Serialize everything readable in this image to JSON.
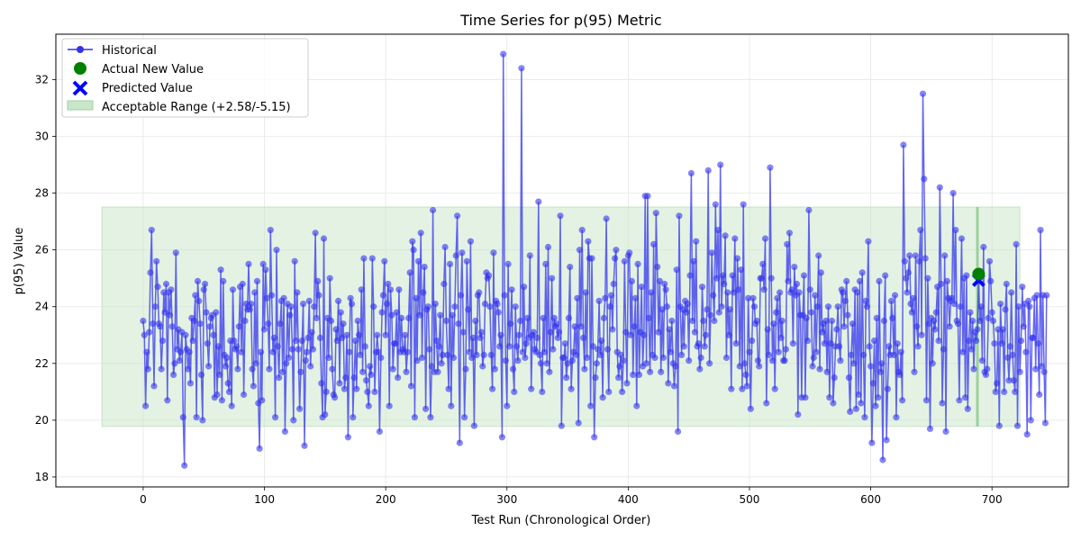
{
  "chart_data": {
    "type": "line",
    "title": "Time Series for p(95) Metric",
    "xlabel": "Test Run (Chronological Order)",
    "ylabel": "p(95) Value",
    "xlim": [
      -72,
      763
    ],
    "ylim": [
      17.65,
      33.6
    ],
    "x_ticks": [
      0,
      100,
      200,
      300,
      400,
      500,
      600,
      700
    ],
    "y_ticks": [
      18,
      20,
      22,
      24,
      26,
      28,
      30,
      32
    ],
    "grid": true,
    "legend_position": "top-left",
    "legend": [
      "Historical",
      "Actual New Value",
      "Predicted Value",
      "Acceptable Range (+2.58/-5.15)"
    ],
    "colors": {
      "historical": "#3333ee",
      "actual": "#008000",
      "predicted": "#0000ff",
      "range_fill": "#c8e6c8",
      "range_edge": "#9fd09f"
    },
    "acceptable_range": {
      "x_start": -34,
      "x_end": 723,
      "lower": 19.78,
      "upper": 27.51
    },
    "range_bar_x": 688,
    "actual_new_value": {
      "x": 689,
      "y": 25.15
    },
    "predicted_value": {
      "x": 689,
      "y": 24.93
    },
    "historical": {
      "name": "Historical",
      "x_start": 0,
      "values": [
        23.5,
        23.0,
        20.5,
        22.4,
        21.8,
        23.1,
        25.2,
        26.7,
        23.4,
        21.2,
        24.0,
        25.6,
        24.7,
        23.4,
        23.3,
        21.8,
        22.8,
        24.5,
        23.8,
        24.8,
        20.7,
        24.5,
        23.7,
        24.6,
        23.3,
        21.6,
        22.0,
        25.9,
        22.5,
        23.2,
        22.1,
        22.4,
        23.1,
        20.1,
        18.4,
        23.0,
        22.5,
        21.8,
        22.4,
        21.3,
        23.6,
        22.8,
        23.5,
        24.4,
        20.1,
        24.9,
        24.2,
        23.4,
        21.6,
        20.0,
        24.6,
        24.8,
        23.8,
        22.7,
        21.9,
        23.3,
        23.6,
        23.7,
        23.0,
        20.8,
        23.8,
        20.9,
        22.6,
        21.6,
        25.3,
        20.7,
        24.9,
        22.3,
        21.9,
        22.2,
        21.3,
        21.0,
        22.8,
        20.5,
        24.6,
        22.8,
        22.5,
        22.6,
        21.8,
        23.3,
        24.7,
        22.4,
        24.8,
        20.9,
        23.5,
        24.1,
        23.9,
        25.5,
        23.9,
        24.1,
        21.8,
        21.2,
        24.5,
        22.0,
        24.9,
        20.6,
        19.0,
        22.4,
        20.7,
        25.5,
        23.2,
        25.3,
        24.3,
        23.4,
        21.8,
        26.7,
        24.4,
        22.4,
        22.9,
        20.1,
        26.0,
        22.6,
        21.5,
        23.4,
        24.2,
        21.7,
        24.3,
        19.6,
        22.0,
        24.1,
        22.2,
        23.7,
        24.0,
        22.5,
        20.0,
        25.6,
        22.8,
        24.5,
        22.5,
        20.4,
        21.7,
        22.8,
        24.1,
        19.1,
        22.1,
        22.4,
        22.9,
        24.2,
        21.9,
        23.1,
        22.5,
        24.0,
        26.6,
        23.6,
        24.9,
        24.4,
        22.9,
        21.3,
        20.1,
        26.4,
        20.2,
        21.0,
        23.6,
        22.2,
        25.0,
        23.5,
        21.8,
        20.9,
        20.8,
        23.2,
        22.8,
        24.2,
        21.3,
        23.8,
        22.9,
        23.4,
        21.1,
        21.5,
        23.0,
        19.4,
        22.4,
        24.3,
        24.1,
        20.1,
        21.5,
        22.8,
        21.1,
        23.5,
        23.0,
        22.3,
        24.6,
        21.7,
        25.7,
        22.6,
        21.4,
        21.0,
        20.5,
        21.9,
        21.6,
        25.7,
        24.0,
        21.0,
        22.4,
        23.0,
        22.4,
        19.6,
        22.2,
        23.8,
        24.4,
        25.6,
        23.0,
        24.1,
        24.8,
        20.5,
        24.6,
        23.7,
        21.8,
        22.7,
        22.7,
        23.8,
        21.5,
        24.6,
        22.4,
        23.6,
        22.5,
        22.4,
        23.0,
        21.7,
        22.4,
        23.6,
        25.2,
        21.2,
        26.3,
        26.0,
        20.1,
        24.3,
        22.1,
        25.6,
        23.7,
        26.6,
        22.2,
        24.5,
        25.4,
        20.4,
        23.9,
        24.0,
        22.5,
        20.1,
        21.9,
        27.4,
        21.7,
        24.1,
        22.8,
        21.7,
        22.6,
        23.7,
        22.0,
        22.3,
        24.8,
        26.1,
        23.5,
        22.3,
        21.1,
        25.5,
        20.5,
        23.7,
        22.2,
        24.0,
        25.8,
        27.2,
        23.4,
        19.2,
        24.4,
        25.9,
        23.1,
        20.1,
        21.8,
        25.6,
        23.9,
        22.4,
        26.3,
        22.2,
        22.9,
        19.8,
        23.5,
        22.3,
        24.4,
        24.5,
        22.9,
        23.1,
        21.9,
        22.3,
        24.1,
        25.2,
        25.0,
        25.1,
        24.0,
        22.3,
        21.1,
        25.9,
        21.8,
        24.2,
        24.1,
        23.8,
        22.6,
        23.0,
        19.4,
        32.9,
        24.4,
        22.1,
        20.5,
        25.5,
        22.6,
        23.4,
        24.6,
        21.8,
        21.0,
        24.0,
        22.6,
        22.1,
        23.0,
        23.5,
        32.4,
        22.4,
        24.7,
        22.2,
        22.7,
        23.6,
        22.9,
        25.8,
        21.1,
        23.0,
        23.1,
        22.5,
        22.4,
        22.9,
        27.7,
        22.3,
        22.0,
        21.0,
        23.6,
        22.4,
        25.5,
        22.0,
        26.1,
        21.7,
        23.1,
        25.0,
        22.5,
        23.6,
        23.3,
        23.4,
        22.9,
        23.1,
        27.2,
        19.8,
        22.2,
        22.2,
        22.7,
        21.5,
        22.0,
        23.6,
        25.4,
        21.1,
        22.1,
        22.4,
        23.3,
        22.3,
        24.3,
        19.9,
        26.0,
        23.3,
        26.7,
        22.9,
        21.8,
        24.5,
        22.2,
        26.3,
        25.7,
        20.5,
        25.7,
        22.6,
        19.4,
        21.5,
        22.0,
        22.5,
        24.2,
        22.3,
        22.8,
        20.8,
        23.6,
        24.3,
        27.1,
        22.5,
        21.0,
        24.0,
        24.4,
        23.2,
        24.8,
        25.7,
        26.0,
        22.4,
        21.5,
        21.9,
        22.3,
        21.0,
        22.1,
        25.6,
        23.1,
        21.3,
        25.8,
        25.9,
        23.0,
        24.9,
        21.6,
        23.3,
        24.3,
        20.5,
        25.5,
        21.6,
        23.1,
        24.7,
        21.9,
        23.0,
        27.9,
        22.0,
        27.9,
        23.6,
        21.7,
        24.5,
        22.3,
        26.2,
        22.2,
        27.3,
        25.4,
        23.1,
        24.9,
        21.7,
        23.9,
        22.2,
        24.8,
        24.6,
        24.0,
        21.3,
        23.2,
        22.4,
        23.5,
        22.0,
        21.2,
        21.9,
        25.3,
        19.6,
        27.2,
        24.0,
        22.3,
        23.9,
        22.6,
        24.2,
        23.8,
        24.1,
        22.1,
        25.1,
        28.7,
        23.5,
        25.6,
        23.1,
        26.3,
        22.6,
        22.7,
        21.8,
        22.2,
        24.7,
        23.5,
        22.6,
        23.0,
        23.9,
        28.8,
        22.0,
        23.7,
        25.9,
        24.4,
        23.5,
        27.6,
        25.0,
        26.7,
        23.8,
        29.0,
        24.0,
        25.1,
        24.8,
        26.5,
        22.2,
        24.5,
        23.0,
        23.9,
        21.1,
        25.1,
        24.5,
        26.4,
        22.7,
        25.7,
        24.6,
        21.9,
        25.3,
        21.1,
        27.6,
        22.0,
        21.6,
        21.2,
        24.3,
        22.4,
        20.4,
        22.8,
        24.3,
        24.0,
        23.4,
        23.5,
        22.1,
        21.9,
        25.0,
        25.0,
        25.5,
        24.6,
        26.4,
        20.6,
        23.2,
        22.3,
        28.9,
        25.0,
        22.1,
        23.4,
        21.1,
        23.8,
        24.3,
        22.4,
        24.5,
        22.9,
        23.5,
        22.1,
        22.1,
        22.5,
        26.2,
        24.9,
        26.6,
        24.5,
        24.6,
        22.7,
        25.4,
        24.4,
        24.8,
        20.2,
        24.5,
        23.7,
        20.8,
        23.7,
        25.1,
        20.8,
        23.6,
        22.8,
        27.4,
        24.6,
        23.8,
        21.9,
        22.2,
        24.4,
        22.4,
        24.0,
        25.8,
        21.8,
        25.2,
        23.1,
        23.4,
        22.7,
        23.5,
        21.7,
        24.0,
        20.8,
        22.7,
        23.5,
        20.6,
        21.5,
        22.6,
        23.2,
        24.0,
        22.6,
        22.1,
        24.6,
        24.5,
        23.3,
        24.2,
        24.9,
        23.7,
        21.5,
        20.3,
        22.3,
        23.4,
        22.0,
        24.6,
        20.4,
        24.5,
        20.9,
        24.9,
        20.6,
        25.2,
        22.3,
        20.1,
        24.2,
        24.0,
        26.3,
        22.6,
        21.9,
        19.2,
        21.3,
        22.8,
        20.5,
        23.6,
        20.8,
        24.9,
        21.7,
        22.0,
        18.6,
        23.5,
        25.1,
        19.3,
        21.1,
        22.6,
        22.3,
        24.2,
        23.6,
        22.3,
        24.4,
        20.1,
        22.7,
        21.7,
        21.6,
        22.4,
        20.7,
        29.7,
        25.6,
        25.0,
        24.5,
        25.2,
        25.8,
        24.1,
        23.8,
        24.3,
        21.7,
        25.8,
        23.3,
        22.6,
        25.6,
        26.7,
        23.0,
        31.5,
        28.5,
        25.7,
        20.7,
        25.0,
        23.4,
        19.7,
        23.6,
        22.0,
        23.5,
        23.2,
        23.8,
        24.7,
        22.8,
        28.2,
        24.8,
        20.6,
        22.5,
        25.8,
        19.6,
        24.9,
        24.3,
        23.3,
        24.2,
        24.3,
        28.0,
        24.1,
        26.7,
        23.5,
        23.4,
        20.7,
        24.0,
        26.4,
        22.4,
        25.0,
        20.8,
        25.1,
        20.4,
        22.8,
        23.8,
        22.5,
        23.5,
        21.8,
        23.1,
        22.8,
        23.2,
        25.1,
        23.5,
        24.0,
        22.1,
        26.1,
        21.7,
        21.6,
        21.8,
        23.6,
        25.6,
        24.9,
        23.8,
        23.5,
        22.7,
        21.0,
        21.3,
        23.2,
        19.8,
        24.1,
        22.7,
        23.2,
        21.0,
        23.9,
        24.8,
        22.2,
        21.4,
        22.6,
        24.5,
        22.3,
        21.4,
        21.0,
        26.2,
        19.8,
        24.0,
        21.7,
        22.8,
        24.7,
        23.3,
        24.1,
        22.4,
        19.5,
        24.2,
        24.0,
        20.0,
        22.9,
        22.9,
        24.3,
        21.8,
        24.4,
        22.7,
        20.9,
        26.7,
        21.9,
        24.4,
        21.7,
        19.9,
        24.4
      ]
    }
  }
}
